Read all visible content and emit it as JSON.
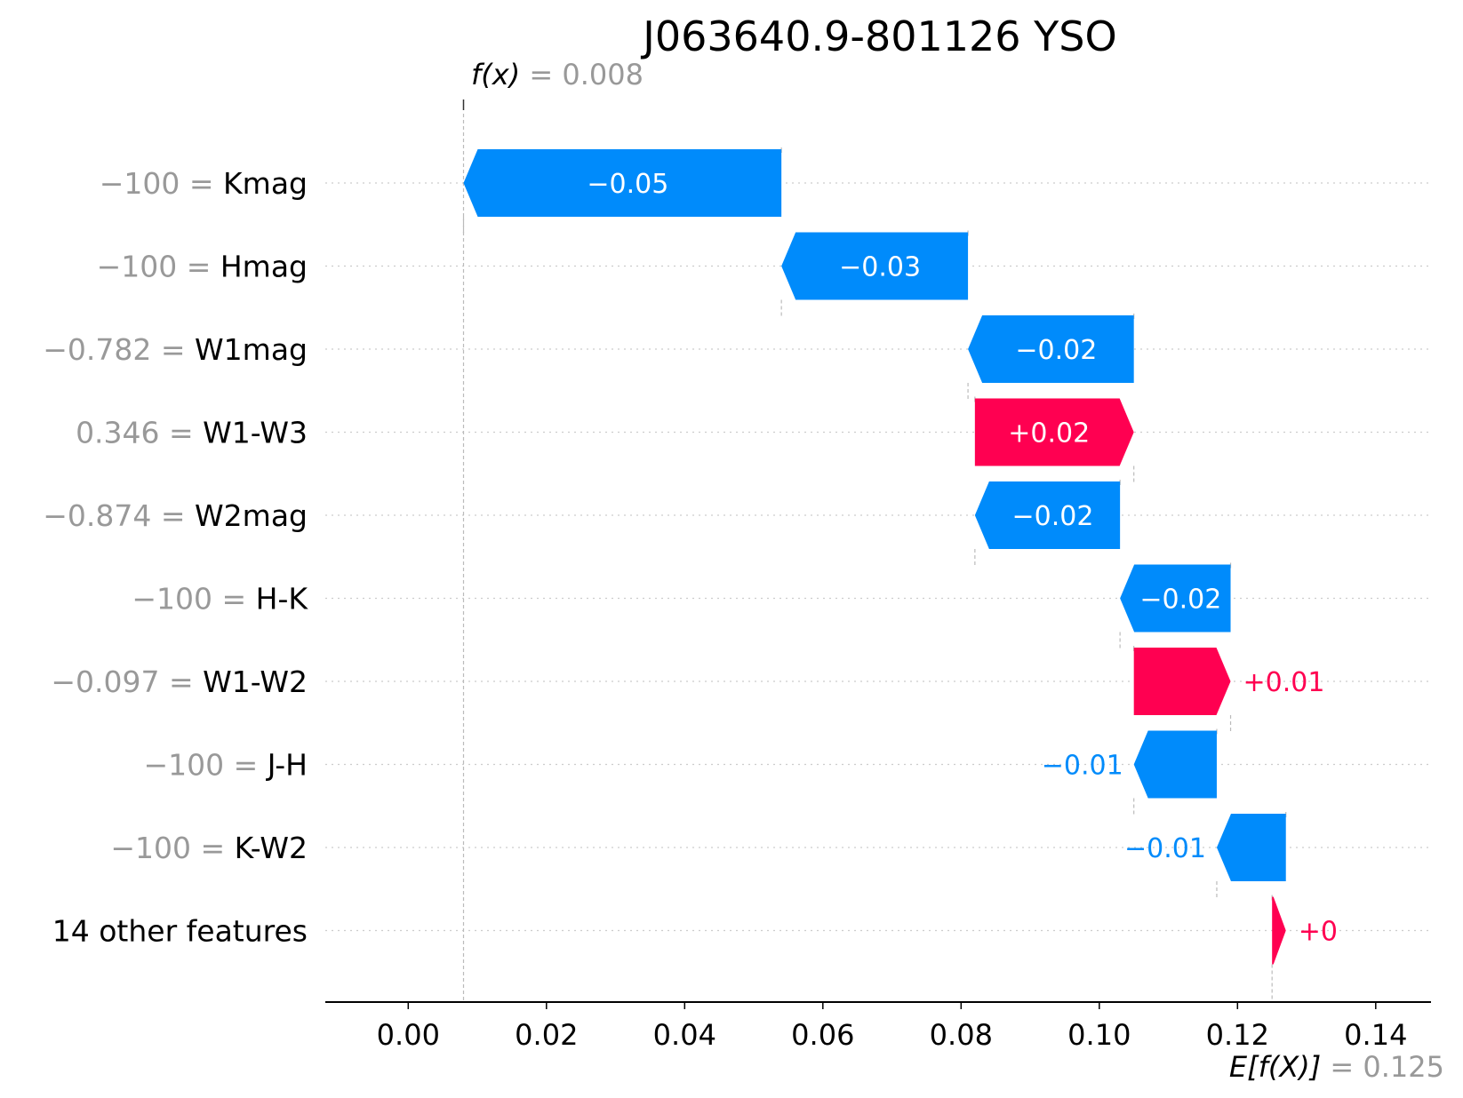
{
  "chart_data": {
    "type": "waterfall",
    "title": "J063640.9-801126 YSO",
    "fx": {
      "label": "f(x)",
      "value": "0.008",
      "number": 0.008
    },
    "expected": {
      "label": "E[f(X)]",
      "value": "0.125",
      "number": 0.125
    },
    "xlim": [
      -0.012,
      0.148
    ],
    "x_ticks": [
      0.0,
      0.02,
      0.04,
      0.06,
      0.08,
      0.1,
      0.12,
      0.14
    ],
    "x_tick_labels": [
      "0.00",
      "0.02",
      "0.04",
      "0.06",
      "0.08",
      "0.10",
      "0.12",
      "0.14"
    ],
    "grid": "horizontal dotted per row",
    "rows": [
      {
        "value": "−100",
        "feature": "Kmag",
        "start": 0.054,
        "end": 0.008,
        "contribution": "−0.05"
      },
      {
        "value": "−100",
        "feature": "Hmag",
        "start": 0.081,
        "end": 0.054,
        "contribution": "−0.03"
      },
      {
        "value": "−0.782",
        "feature": "W1mag",
        "start": 0.105,
        "end": 0.081,
        "contribution": "−0.02"
      },
      {
        "value": "0.346",
        "feature": "W1-W3",
        "start": 0.082,
        "end": 0.105,
        "contribution": "+0.02"
      },
      {
        "value": "−0.874",
        "feature": "W2mag",
        "start": 0.103,
        "end": 0.082,
        "contribution": "−0.02"
      },
      {
        "value": "−100",
        "feature": "H-K",
        "start": 0.119,
        "end": 0.103,
        "contribution": "−0.02"
      },
      {
        "value": "−0.097",
        "feature": "W1-W2",
        "start": 0.105,
        "end": 0.119,
        "contribution": "+0.01"
      },
      {
        "value": "−100",
        "feature": "J-H",
        "start": 0.117,
        "end": 0.105,
        "contribution": "−0.01"
      },
      {
        "value": "−100",
        "feature": "K-W2",
        "start": 0.127,
        "end": 0.117,
        "contribution": "−0.01"
      },
      {
        "value": "",
        "feature": "14 other features",
        "start": 0.125,
        "end": 0.127,
        "contribution": "+0"
      }
    ],
    "colors": {
      "positive": "#ff0051",
      "negative": "#008bfb",
      "value_text": "#999999",
      "axis": "#000000",
      "guide": "#bbbbbb",
      "grid": "#cccccc"
    }
  }
}
